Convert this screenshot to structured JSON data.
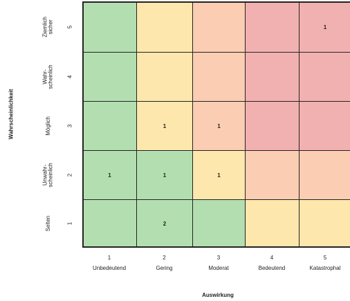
{
  "chart_data": {
    "type": "heatmap",
    "title": "",
    "xlabel": "Auswirkung",
    "ylabel": "Wahrscheinlichkeit",
    "x_ticks": [
      "1",
      "2",
      "3",
      "4",
      "5"
    ],
    "x_labels": [
      "Unbedeutend",
      "Gering",
      "Moderat",
      "Bedeutend",
      "Katastrophal"
    ],
    "y_ticks": [
      "5",
      "4",
      "3",
      "2",
      "1"
    ],
    "y_labels": [
      "Ziemlich\nsicher",
      "Wahr-\nscheinlich",
      "Möglich",
      "Unwahr-\nscheinlich",
      "Selten"
    ],
    "colors": {
      "green": "#b3dfb0",
      "yellow": "#fde7ad",
      "orange": "#fbcdb2",
      "red": "#f2b1b1"
    },
    "cell_colors": [
      [
        "green",
        "yellow",
        "orange",
        "red",
        "red"
      ],
      [
        "green",
        "yellow",
        "orange",
        "red",
        "red"
      ],
      [
        "green",
        "yellow",
        "orange",
        "red",
        "red"
      ],
      [
        "green",
        "green",
        "yellow",
        "orange",
        "orange"
      ],
      [
        "green",
        "green",
        "green",
        "yellow",
        "yellow"
      ]
    ],
    "values": [
      [
        "",
        "",
        "",
        "",
        "1"
      ],
      [
        "",
        "",
        "",
        "",
        ""
      ],
      [
        "",
        "1",
        "1",
        "",
        ""
      ],
      [
        "1",
        "1",
        "1",
        "",
        ""
      ],
      [
        "",
        "2",
        "",
        "",
        ""
      ]
    ]
  }
}
